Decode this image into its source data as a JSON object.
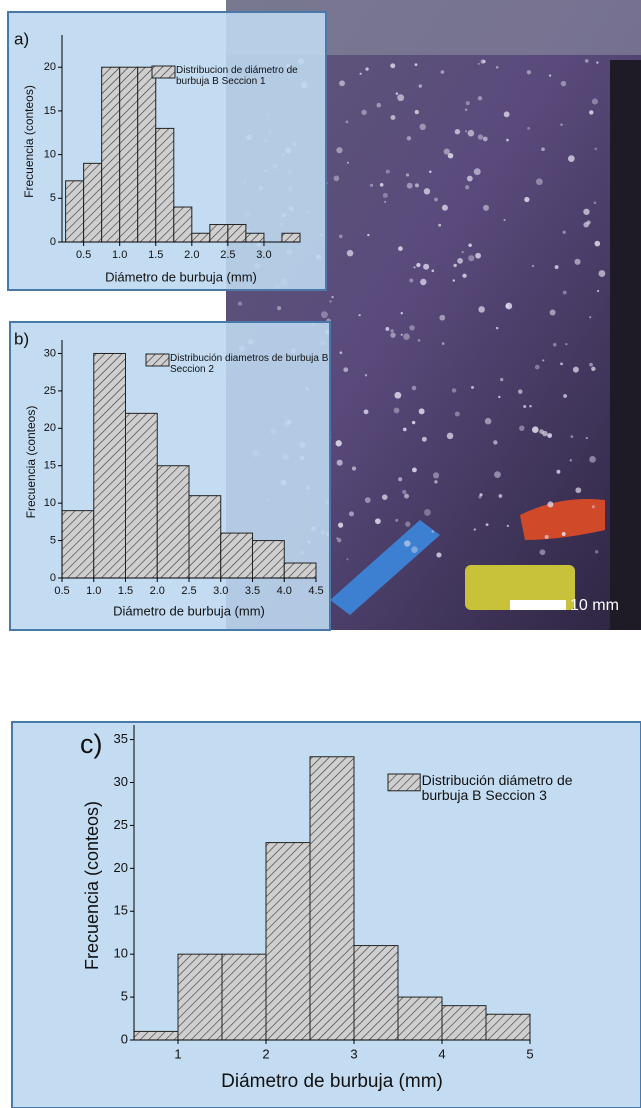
{
  "chart_data": [
    {
      "type": "histogram",
      "panel_label": "a)",
      "xlabel": "Diámetro de burbuja (mm)",
      "ylabel": "Frecuencia (conteos)",
      "bins": [
        0.25,
        0.5,
        0.75,
        1.0,
        1.25,
        1.5,
        1.75,
        2.0,
        2.25,
        2.5,
        2.75,
        3.0,
        3.25,
        3.5
      ],
      "series": [
        {
          "name": "Distribucion de diámetro de burbuja B Seccion 1",
          "color": "#cfcfcf",
          "values": [
            7,
            9,
            20,
            20,
            20,
            13,
            4,
            1,
            2,
            2,
            1,
            0,
            1
          ]
        }
      ],
      "xlim": [
        0.2,
        3.5
      ],
      "xticks": [
        0.5,
        {
          "value": 1,
          "label": "1.0"
        },
        1.5,
        {
          "value": 2,
          "label": "2.0"
        },
        2.5,
        {
          "value": 3,
          "label": "3.0"
        }
      ],
      "ylim": [
        0,
        23
      ],
      "yticks": [
        0,
        5,
        10,
        15,
        20
      ]
    },
    {
      "type": "histogram",
      "panel_label": "b)",
      "xlabel": "Diámetro de burbuja (mm)",
      "ylabel": "Frecuencia (conteos)",
      "bins": [
        0.5,
        1.0,
        1.5,
        2.0,
        2.5,
        3.0,
        3.5,
        4.0,
        4.5
      ],
      "series": [
        {
          "name": "Distribución diametros de burbuja B Seccion 2",
          "color": "#cfcfcf",
          "values": [
            9,
            30,
            22,
            15,
            11,
            6,
            5,
            2
          ]
        }
      ],
      "xlim": [
        0.5,
        4.5
      ],
      "xticks": [
        0.5,
        {
          "value": 1,
          "label": "1.0"
        },
        1.5,
        {
          "value": 2,
          "label": "2.0"
        },
        2.5,
        {
          "value": 3,
          "label": "3.0"
        },
        3.5,
        {
          "value": 4,
          "label": "4.0"
        },
        4.5
      ],
      "ylim": [
        0,
        31
      ],
      "yticks": [
        0,
        5,
        10,
        15,
        20,
        25,
        30
      ]
    },
    {
      "type": "histogram",
      "panel_label": "c)",
      "xlabel": "Diámetro de burbuja (mm)",
      "ylabel": "Frecuencia (conteos)",
      "bins": [
        0.5,
        1.0,
        1.5,
        2.0,
        2.5,
        3.0,
        3.5,
        4.0,
        4.5,
        5.0
      ],
      "series": [
        {
          "name": "Distribución diámetro de burbuja B Seccion 3",
          "color": "#cfcfcf",
          "values": [
            1,
            10,
            10,
            23,
            33,
            11,
            5,
            4,
            3
          ]
        }
      ],
      "xlim": [
        0.5,
        5
      ],
      "xticks": [
        1,
        2,
        3,
        4,
        5
      ],
      "ylim": [
        0,
        36
      ],
      "yticks": [
        0,
        5,
        10,
        15,
        20,
        25,
        30,
        35
      ]
    }
  ],
  "photo": {
    "scale_label": "10 mm"
  }
}
